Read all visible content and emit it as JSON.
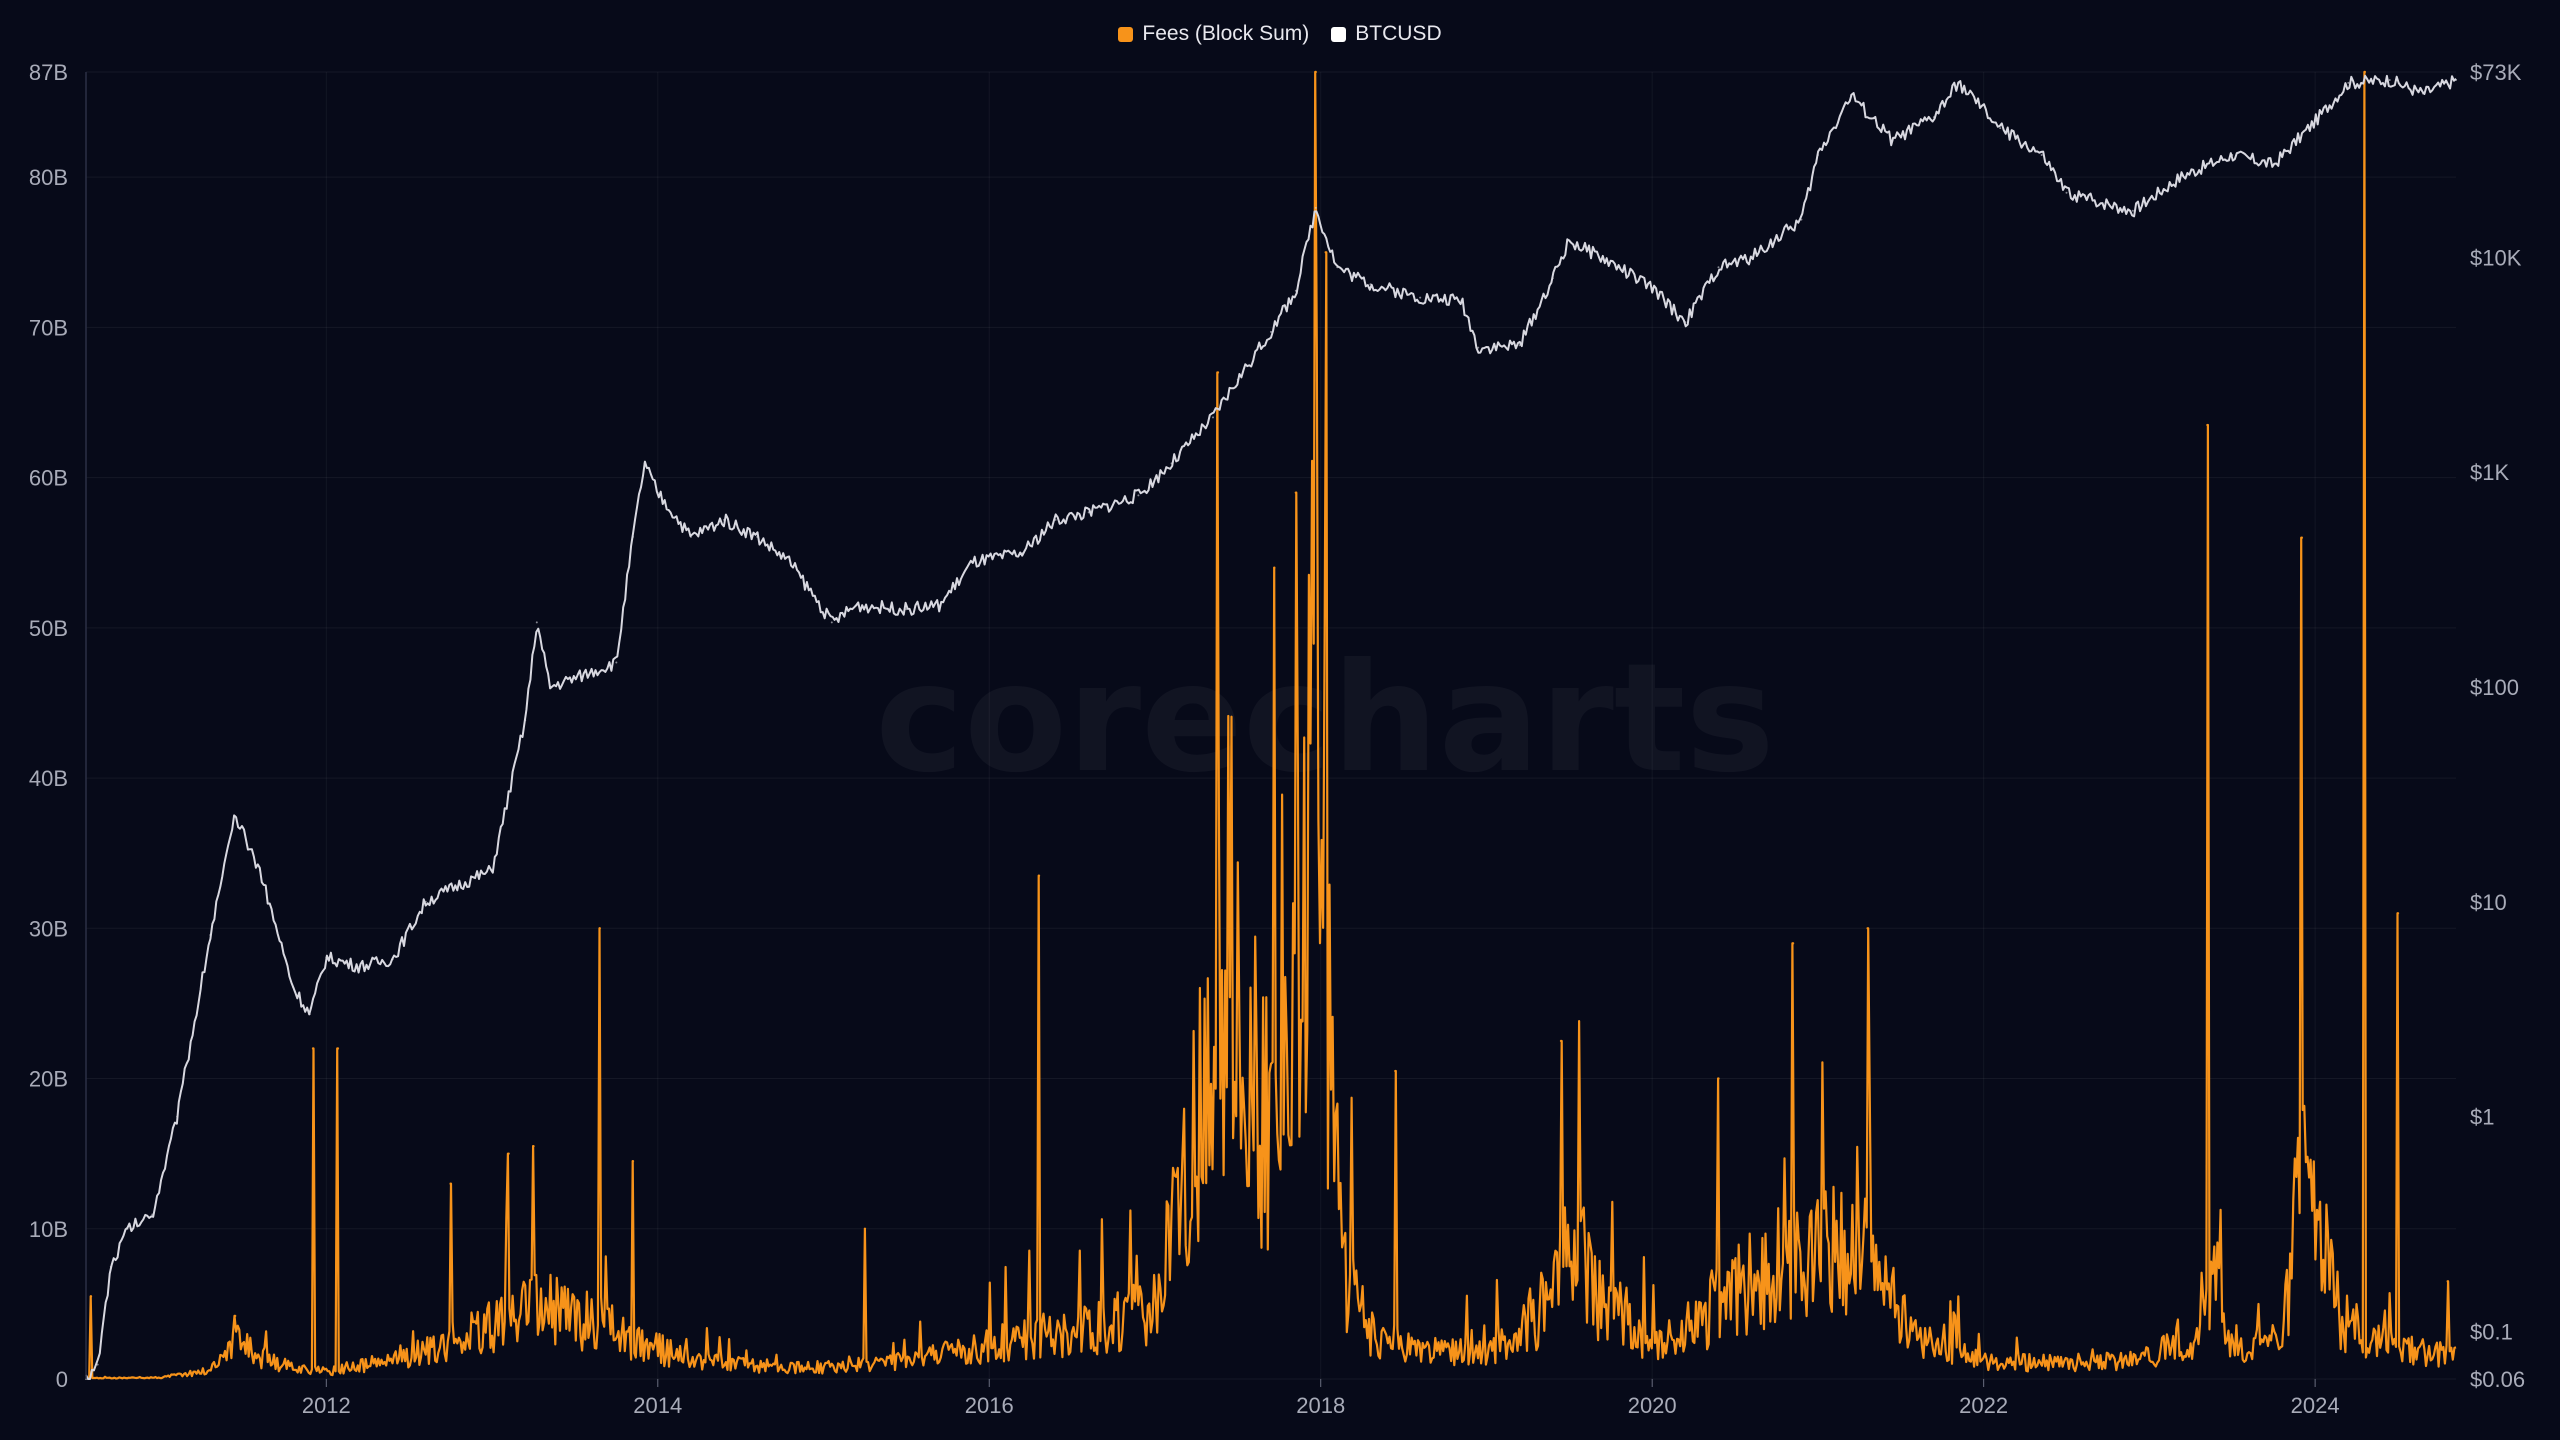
{
  "watermark": "corecharts",
  "legend": [
    {
      "label": "Fees (Block Sum)",
      "color": "#f7931a"
    },
    {
      "label": "BTCUSD",
      "color": "#ffffff"
    }
  ],
  "chart_data": {
    "type": "line",
    "title": "",
    "x_range": [
      2010.55,
      2024.85
    ],
    "x_ticks": [
      {
        "value": 2012,
        "label": "2012"
      },
      {
        "value": 2014,
        "label": "2014"
      },
      {
        "value": 2016,
        "label": "2016"
      },
      {
        "value": 2018,
        "label": "2018"
      },
      {
        "value": 2020,
        "label": "2020"
      },
      {
        "value": 2022,
        "label": "2022"
      },
      {
        "value": 2024,
        "label": "2024"
      }
    ],
    "y_left": {
      "range": [
        0,
        87
      ],
      "unit": "B",
      "ticks": [
        {
          "value": 0,
          "label": "0"
        },
        {
          "value": 10,
          "label": "10B"
        },
        {
          "value": 20,
          "label": "20B"
        },
        {
          "value": 30,
          "label": "30B"
        },
        {
          "value": 40,
          "label": "40B"
        },
        {
          "value": 50,
          "label": "50B"
        },
        {
          "value": 60,
          "label": "60B"
        },
        {
          "value": 70,
          "label": "70B"
        },
        {
          "value": 80,
          "label": "80B"
        },
        {
          "value": 87,
          "label": "87B"
        }
      ]
    },
    "y_right": {
      "scale": "log",
      "range": [
        0.06,
        73000
      ],
      "ticks": [
        {
          "value": 0.06,
          "label": "$0.06"
        },
        {
          "value": 0.1,
          "label": "$0.1"
        },
        {
          "value": 1,
          "label": "$1"
        },
        {
          "value": 10,
          "label": "$10"
        },
        {
          "value": 100,
          "label": "$100"
        },
        {
          "value": 1000,
          "label": "$1K"
        },
        {
          "value": 10000,
          "label": "$10K"
        },
        {
          "value": 73000,
          "label": "$73K"
        }
      ]
    },
    "grid": true,
    "legend_position": "top-center",
    "series": [
      {
        "name": "Fees (Block Sum)",
        "axis": "left",
        "color": "#f7931a",
        "base": [
          [
            2010.55,
            0.05
          ],
          [
            2011.0,
            0.1
          ],
          [
            2011.3,
            0.6
          ],
          [
            2011.45,
            2.5
          ],
          [
            2011.7,
            1.0
          ],
          [
            2012.0,
            0.5
          ],
          [
            2012.5,
            1.5
          ],
          [
            2013.0,
            3.5
          ],
          [
            2013.3,
            5.0
          ],
          [
            2013.6,
            4.0
          ],
          [
            2013.9,
            2.5
          ],
          [
            2014.2,
            1.2
          ],
          [
            2014.6,
            0.9
          ],
          [
            2015.0,
            0.8
          ],
          [
            2015.5,
            1.2
          ],
          [
            2015.9,
            2.0
          ],
          [
            2016.3,
            3.0
          ],
          [
            2016.7,
            3.5
          ],
          [
            2017.0,
            5.0
          ],
          [
            2017.2,
            14.0
          ],
          [
            2017.35,
            22.0
          ],
          [
            2017.45,
            31.0
          ],
          [
            2017.6,
            20.0
          ],
          [
            2017.75,
            14.0
          ],
          [
            2017.9,
            32.0
          ],
          [
            2017.98,
            50.0
          ],
          [
            2018.05,
            24.0
          ],
          [
            2018.15,
            7.0
          ],
          [
            2018.3,
            3.0
          ],
          [
            2018.6,
            2.0
          ],
          [
            2019.0,
            1.8
          ],
          [
            2019.3,
            4.0
          ],
          [
            2019.5,
            10.0
          ],
          [
            2019.7,
            5.0
          ],
          [
            2020.0,
            2.5
          ],
          [
            2020.3,
            4.0
          ],
          [
            2020.5,
            6.0
          ],
          [
            2020.8,
            8.0
          ],
          [
            2021.0,
            9.0
          ],
          [
            2021.3,
            8.0
          ],
          [
            2021.6,
            2.5
          ],
          [
            2022.0,
            1.2
          ],
          [
            2022.6,
            1.0
          ],
          [
            2023.0,
            1.5
          ],
          [
            2023.3,
            3.0
          ],
          [
            2023.38,
            8.0
          ],
          [
            2023.5,
            2.0
          ],
          [
            2023.8,
            2.5
          ],
          [
            2023.9,
            12.0
          ],
          [
            2024.0,
            14.0
          ],
          [
            2024.15,
            4.0
          ],
          [
            2024.3,
            3.0
          ],
          [
            2024.5,
            2.0
          ],
          [
            2024.85,
            1.5
          ]
        ],
        "spikes": [
          [
            2010.58,
            5.5
          ],
          [
            2011.45,
            4.2
          ],
          [
            2011.92,
            22.0
          ],
          [
            2012.07,
            22.0
          ],
          [
            2012.75,
            13.0
          ],
          [
            2013.1,
            15.0
          ],
          [
            2013.25,
            15.5
          ],
          [
            2013.65,
            30.0
          ],
          [
            2013.85,
            14.5
          ],
          [
            2015.25,
            10.0
          ],
          [
            2016.3,
            33.5
          ],
          [
            2017.38,
            67.0
          ],
          [
            2017.72,
            54.0
          ],
          [
            2017.85,
            59.0
          ],
          [
            2017.97,
            87.0
          ],
          [
            2018.03,
            75.0
          ],
          [
            2018.45,
            20.5
          ],
          [
            2019.45,
            22.5
          ],
          [
            2020.4,
            20.0
          ],
          [
            2020.85,
            29.0
          ],
          [
            2021.3,
            30.0
          ],
          [
            2023.35,
            63.5
          ],
          [
            2023.92,
            56.0
          ],
          [
            2024.3,
            87.0
          ],
          [
            2024.5,
            31.0
          ],
          [
            2024.8,
            6.5
          ]
        ]
      },
      {
        "name": "BTCUSD",
        "axis": "right",
        "color": "#d8d8e0",
        "points": [
          [
            2010.55,
            0.06
          ],
          [
            2010.62,
            0.07
          ],
          [
            2010.7,
            0.2
          ],
          [
            2010.8,
            0.3
          ],
          [
            2010.95,
            0.35
          ],
          [
            2011.1,
            1.0
          ],
          [
            2011.3,
            7.0
          ],
          [
            2011.45,
            25.0
          ],
          [
            2011.6,
            14.0
          ],
          [
            2011.8,
            4.0
          ],
          [
            2011.9,
            3.0
          ],
          [
            2012.0,
            5.5
          ],
          [
            2012.2,
            5.0
          ],
          [
            2012.4,
            5.4
          ],
          [
            2012.6,
            10.0
          ],
          [
            2012.8,
            12.0
          ],
          [
            2013.0,
            14.0
          ],
          [
            2013.2,
            70.0
          ],
          [
            2013.27,
            200.0
          ],
          [
            2013.35,
            100.0
          ],
          [
            2013.5,
            110.0
          ],
          [
            2013.75,
            130.0
          ],
          [
            2013.85,
            500.0
          ],
          [
            2013.92,
            1100.0
          ],
          [
            2014.0,
            800.0
          ],
          [
            2014.2,
            500.0
          ],
          [
            2014.4,
            600.0
          ],
          [
            2014.6,
            500.0
          ],
          [
            2014.8,
            380.0
          ],
          [
            2015.05,
            200.0
          ],
          [
            2015.2,
            240.0
          ],
          [
            2015.5,
            230.0
          ],
          [
            2015.7,
            240.0
          ],
          [
            2015.9,
            380.0
          ],
          [
            2016.2,
            420.0
          ],
          [
            2016.4,
            600.0
          ],
          [
            2016.6,
            650.0
          ],
          [
            2016.9,
            780.0
          ],
          [
            2017.1,
            1100.0
          ],
          [
            2017.35,
            1800.0
          ],
          [
            2017.5,
            2700.0
          ],
          [
            2017.7,
            4500.0
          ],
          [
            2017.85,
            7000.0
          ],
          [
            2017.97,
            17000.0
          ],
          [
            2018.1,
            9000.0
          ],
          [
            2018.3,
            7500.0
          ],
          [
            2018.6,
            6500.0
          ],
          [
            2018.85,
            6300.0
          ],
          [
            2018.95,
            3800.0
          ],
          [
            2019.2,
            3900.0
          ],
          [
            2019.4,
            8000.0
          ],
          [
            2019.5,
            12000.0
          ],
          [
            2019.8,
            9000.0
          ],
          [
            2020.0,
            7200.0
          ],
          [
            2020.2,
            5000.0
          ],
          [
            2020.4,
            9000.0
          ],
          [
            2020.6,
            10000.0
          ],
          [
            2020.9,
            15000.0
          ],
          [
            2021.0,
            30000.0
          ],
          [
            2021.2,
            57000.0
          ],
          [
            2021.45,
            35000.0
          ],
          [
            2021.7,
            45000.0
          ],
          [
            2021.85,
            65000.0
          ],
          [
            2022.1,
            40000.0
          ],
          [
            2022.35,
            30000.0
          ],
          [
            2022.5,
            20000.0
          ],
          [
            2022.9,
            16500.0
          ],
          [
            2023.2,
            24000.0
          ],
          [
            2023.5,
            30000.0
          ],
          [
            2023.75,
            27000.0
          ],
          [
            2024.0,
            43000.0
          ],
          [
            2024.2,
            65000.0
          ],
          [
            2024.45,
            67000.0
          ],
          [
            2024.65,
            58000.0
          ],
          [
            2024.85,
            67000.0
          ]
        ]
      }
    ]
  }
}
